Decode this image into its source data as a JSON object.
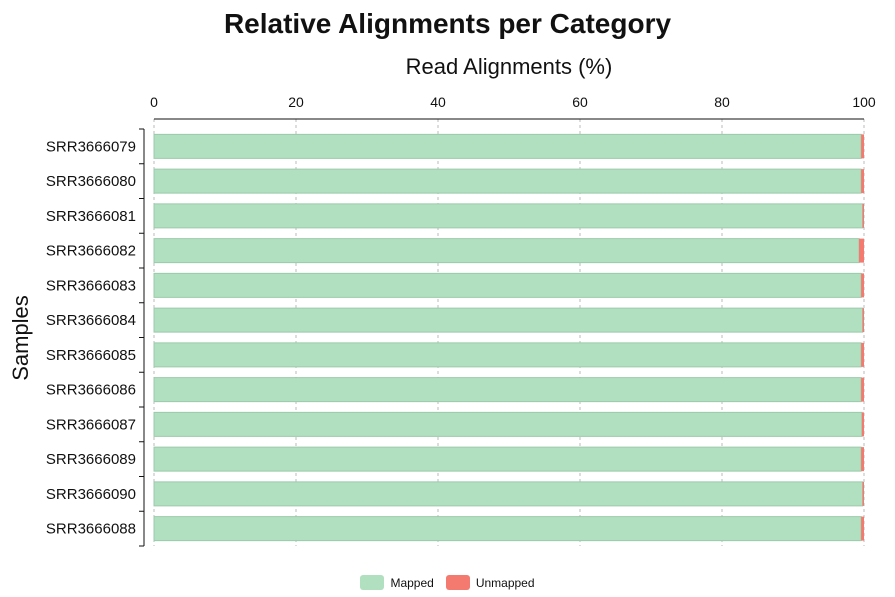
{
  "chart_data": {
    "type": "bar",
    "orientation": "horizontal",
    "stacked": true,
    "title": "Relative Alignments per Category",
    "xlabel": "Read Alignments (%)",
    "ylabel": "Samples",
    "xlim": [
      0,
      100
    ],
    "x_ticks": [
      "0",
      "20",
      "40",
      "60",
      "80",
      "100"
    ],
    "x_axis_position": "top",
    "grid": true,
    "legend_position": "bottom-center",
    "categories": [
      "SRR3666079",
      "SRR3666080",
      "SRR3666081",
      "SRR3666082",
      "SRR3666083",
      "SRR3666084",
      "SRR3666085",
      "SRR3666086",
      "SRR3666087",
      "SRR3666089",
      "SRR3666090",
      "SRR3666088"
    ],
    "series": [
      {
        "name": "Mapped",
        "color": "#b0e0c0",
        "values": [
          99.6,
          99.6,
          99.8,
          99.3,
          99.6,
          99.8,
          99.6,
          99.6,
          99.7,
          99.6,
          99.8,
          99.6
        ]
      },
      {
        "name": "Unmapped",
        "color": "#f47a70",
        "values": [
          0.4,
          0.4,
          0.2,
          0.7,
          0.4,
          0.2,
          0.4,
          0.4,
          0.3,
          0.4,
          0.2,
          0.4
        ]
      }
    ]
  }
}
